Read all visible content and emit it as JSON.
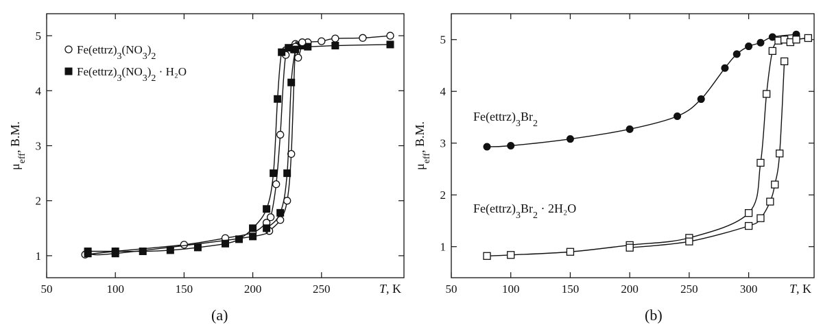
{
  "captions": [
    "(a)",
    "(b)"
  ],
  "chart_data": [
    {
      "type": "scatter",
      "panel": "(a)",
      "xlabel_italic": "T",
      "xlabel_unit": ", K",
      "ylabel_base": "μ",
      "ylabel_sub": "eff",
      "ylabel_unit": ", B.M.",
      "xlim": [
        50,
        310
      ],
      "ylim": [
        0.6,
        5.4
      ],
      "xticks": [
        50,
        100,
        150,
        200,
        250
      ],
      "yticks": [
        1,
        2,
        3,
        4,
        5
      ],
      "legend_position": "top-left",
      "series": [
        {
          "name": "Fe(ettrz)3(NO3)2",
          "name_main": "Fe(ettrz)",
          "name_sub1": "3",
          "name_mid": "(NO",
          "name_sub2": "3",
          "name_end": ")",
          "name_sub3": "2",
          "name_tail": "",
          "marker": "open-circle",
          "x": [
            78,
            100,
            150,
            180,
            200,
            210,
            213,
            217,
            220,
            224,
            231,
            235,
            240,
            250,
            260,
            280,
            300
          ],
          "y": [
            1.02,
            1.08,
            1.2,
            1.32,
            1.42,
            1.6,
            1.7,
            2.3,
            3.2,
            4.65,
            4.85,
            4.82,
            4.88,
            4.9,
            4.95,
            4.96,
            5.0
          ]
        },
        {
          "name": "Fe(ettrz)3(NO3)2 · H2O",
          "name_main": "Fe(ettrz)",
          "name_sub1": "3",
          "name_mid": "(NO",
          "name_sub2": "3",
          "name_end": ")",
          "name_sub3": "2",
          "name_tail": " · H₂O",
          "marker": "filled-square",
          "x": [
            80,
            100,
            120,
            140,
            160,
            180,
            190,
            200,
            210,
            215,
            218,
            221,
            226,
            230,
            235,
            240,
            260,
            300
          ],
          "y": [
            1.08,
            1.08,
            1.08,
            1.1,
            1.15,
            1.22,
            1.3,
            1.5,
            1.85,
            2.5,
            3.85,
            4.7,
            4.78,
            4.75,
            4.82,
            4.8,
            4.82,
            4.84
          ]
        },
        {
          "name": "",
          "marker": "open-circle",
          "x": [
            212,
            220,
            225,
            228,
            231,
            233,
            236
          ],
          "y": [
            1.45,
            1.65,
            2.0,
            2.85,
            4.8,
            4.6,
            4.88
          ]
        },
        {
          "name": "",
          "marker": "filled-square",
          "x": [
            80,
            100,
            200,
            210,
            220,
            225,
            228,
            231
          ],
          "y": [
            1.04,
            1.04,
            1.35,
            1.5,
            1.78,
            2.5,
            4.15,
            4.75
          ]
        }
      ]
    },
    {
      "type": "scatter",
      "panel": "(b)",
      "xlabel_italic": "T",
      "xlabel_unit": ", K",
      "ylabel_base": "μ",
      "ylabel_sub": "eff",
      "ylabel_unit": ", B.M.",
      "xlim": [
        50,
        355
      ],
      "ylim": [
        0.4,
        5.5
      ],
      "xticks": [
        50,
        100,
        150,
        200,
        250,
        300
      ],
      "yticks": [
        1,
        2,
        3,
        4,
        5
      ],
      "series": [
        {
          "name": "Fe(ettrz)3Br2",
          "name_main": "Fe(ettrz)",
          "name_sub1": "3",
          "name_mid": "Br",
          "name_sub2": "2",
          "name_tail": "",
          "marker": "filled-circle",
          "x": [
            80,
            100,
            150,
            200,
            240,
            260,
            280,
            290,
            300,
            310,
            320,
            340
          ],
          "y": [
            2.93,
            2.95,
            3.08,
            3.27,
            3.52,
            3.85,
            4.45,
            4.72,
            4.87,
            4.94,
            5.05,
            5.1
          ]
        },
        {
          "name": "Fe(ettrz)3Br2 · 2H2O",
          "name_main": "Fe(ettrz)",
          "name_sub1": "3",
          "name_mid": "Br",
          "name_sub2": "2",
          "name_tail": " · 2H₂O",
          "marker": "open-square",
          "x": [
            80,
            100,
            150,
            200,
            250,
            300,
            310,
            315,
            320,
            325,
            330,
            335,
            340,
            350
          ],
          "y": [
            0.82,
            0.84,
            0.9,
            1.03,
            1.17,
            1.65,
            2.62,
            3.95,
            4.78,
            4.98,
            5.0,
            4.95,
            5.0,
            5.03
          ]
        },
        {
          "name": "",
          "marker": "open-square",
          "x": [
            200,
            250,
            300,
            310,
            318,
            322,
            326,
            330
          ],
          "y": [
            0.98,
            1.1,
            1.4,
            1.55,
            1.87,
            2.2,
            2.8,
            4.58
          ]
        }
      ]
    }
  ]
}
